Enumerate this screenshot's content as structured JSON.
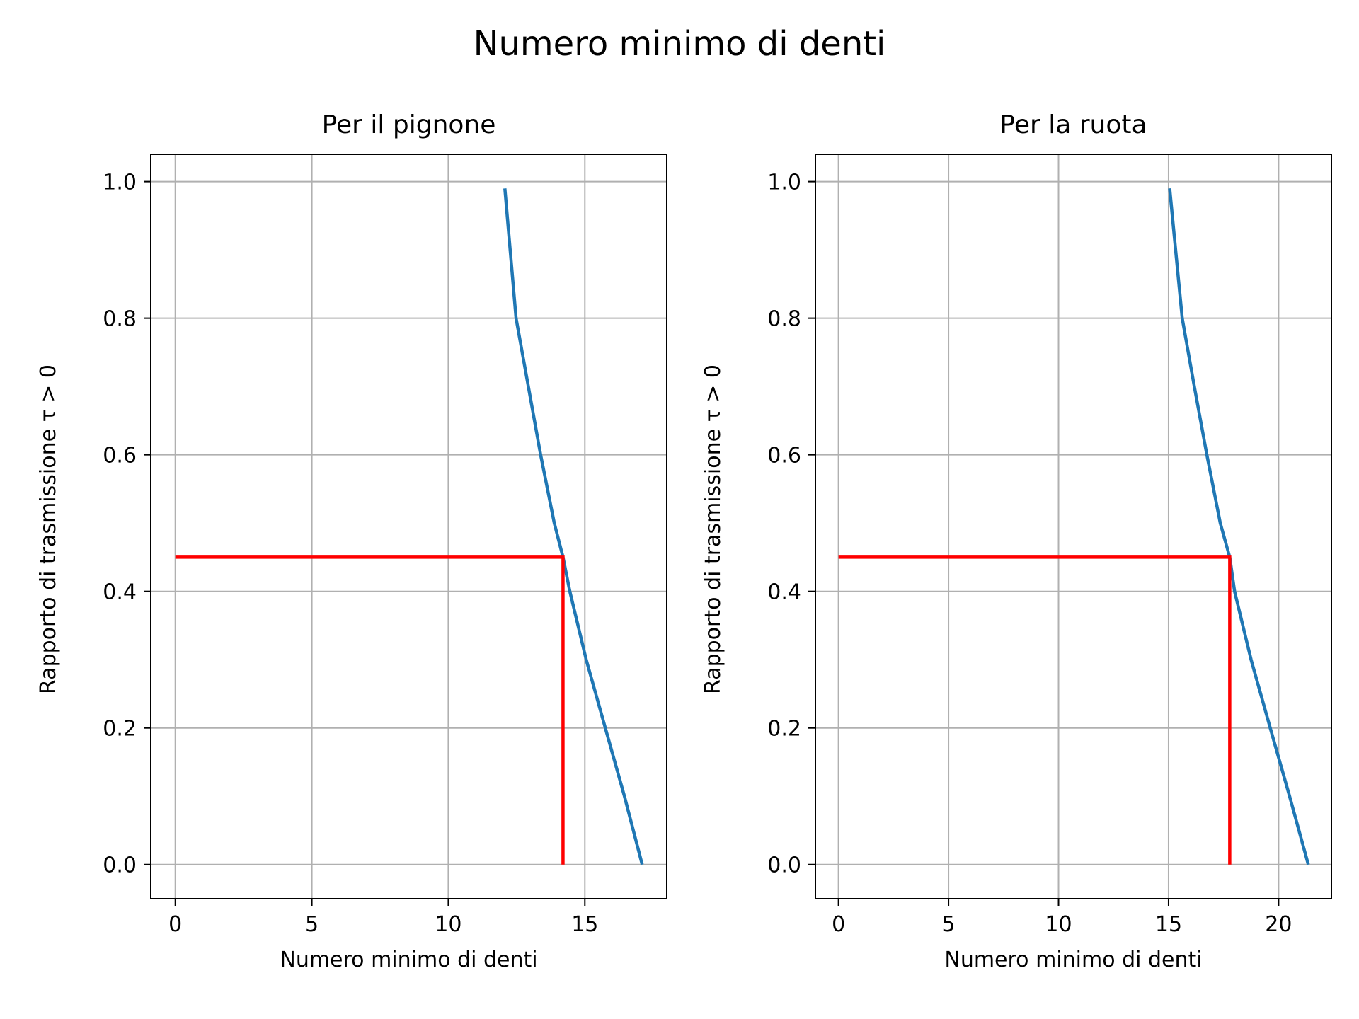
{
  "figure_title": "Numero minimo di denti",
  "colors": {
    "curve": "#1f77b4",
    "marker": "#ff0000",
    "grid": "#b0b0b0",
    "frame": "#000000"
  },
  "chart_data": [
    {
      "type": "line",
      "title": "Per il pignone",
      "xlabel": "Numero minimo di denti",
      "ylabel": "Rapporto di trasmissione τ > 0",
      "xlim": [
        -0.9,
        18.0
      ],
      "ylim": [
        -0.05,
        1.04
      ],
      "xticks": [
        0,
        5,
        10,
        15
      ],
      "yticks": [
        0.0,
        0.2,
        0.4,
        0.6,
        0.8,
        1.0
      ],
      "xtick_labels": [
        "0",
        "5",
        "10",
        "15"
      ],
      "ytick_labels": [
        "0.0",
        "0.2",
        "0.4",
        "0.6",
        "0.8",
        "1.0"
      ],
      "grid": true,
      "series": [
        {
          "role": "curve",
          "color": "#1f77b4",
          "x": [
            17.1,
            16.45,
            15.75,
            15.05,
            14.45,
            14.2,
            13.88,
            13.38,
            12.93,
            12.48,
            12.07
          ],
          "y": [
            0.0,
            0.1,
            0.2,
            0.3,
            0.4,
            0.45,
            0.5,
            0.6,
            0.7,
            0.8,
            0.99
          ]
        },
        {
          "role": "marker",
          "color": "#ff0000",
          "x": [
            0,
            14.2,
            14.2
          ],
          "y": [
            0.45,
            0.45,
            0.0
          ]
        }
      ]
    },
    {
      "type": "line",
      "title": "Per la ruota",
      "xlabel": "Numero minimo di denti",
      "ylabel": "Rapporto di trasmissione τ > 0",
      "xlim": [
        -1.05,
        22.4
      ],
      "ylim": [
        -0.05,
        1.04
      ],
      "xticks": [
        0,
        5,
        10,
        15,
        20
      ],
      "yticks": [
        0.0,
        0.2,
        0.4,
        0.6,
        0.8,
        1.0
      ],
      "xtick_labels": [
        "0",
        "5",
        "10",
        "15",
        "20"
      ],
      "ytick_labels": [
        "0.0",
        "0.2",
        "0.4",
        "0.6",
        "0.8",
        "1.0"
      ],
      "grid": true,
      "series": [
        {
          "role": "curve",
          "color": "#1f77b4",
          "x": [
            21.35,
            20.5,
            19.62,
            18.75,
            18.0,
            17.78,
            17.35,
            16.74,
            16.17,
            15.62,
            15.05
          ],
          "y": [
            0.0,
            0.1,
            0.2,
            0.3,
            0.4,
            0.45,
            0.5,
            0.6,
            0.7,
            0.8,
            0.99
          ]
        },
        {
          "role": "marker",
          "color": "#ff0000",
          "x": [
            0,
            17.78,
            17.78
          ],
          "y": [
            0.45,
            0.45,
            0.0
          ]
        }
      ]
    }
  ]
}
